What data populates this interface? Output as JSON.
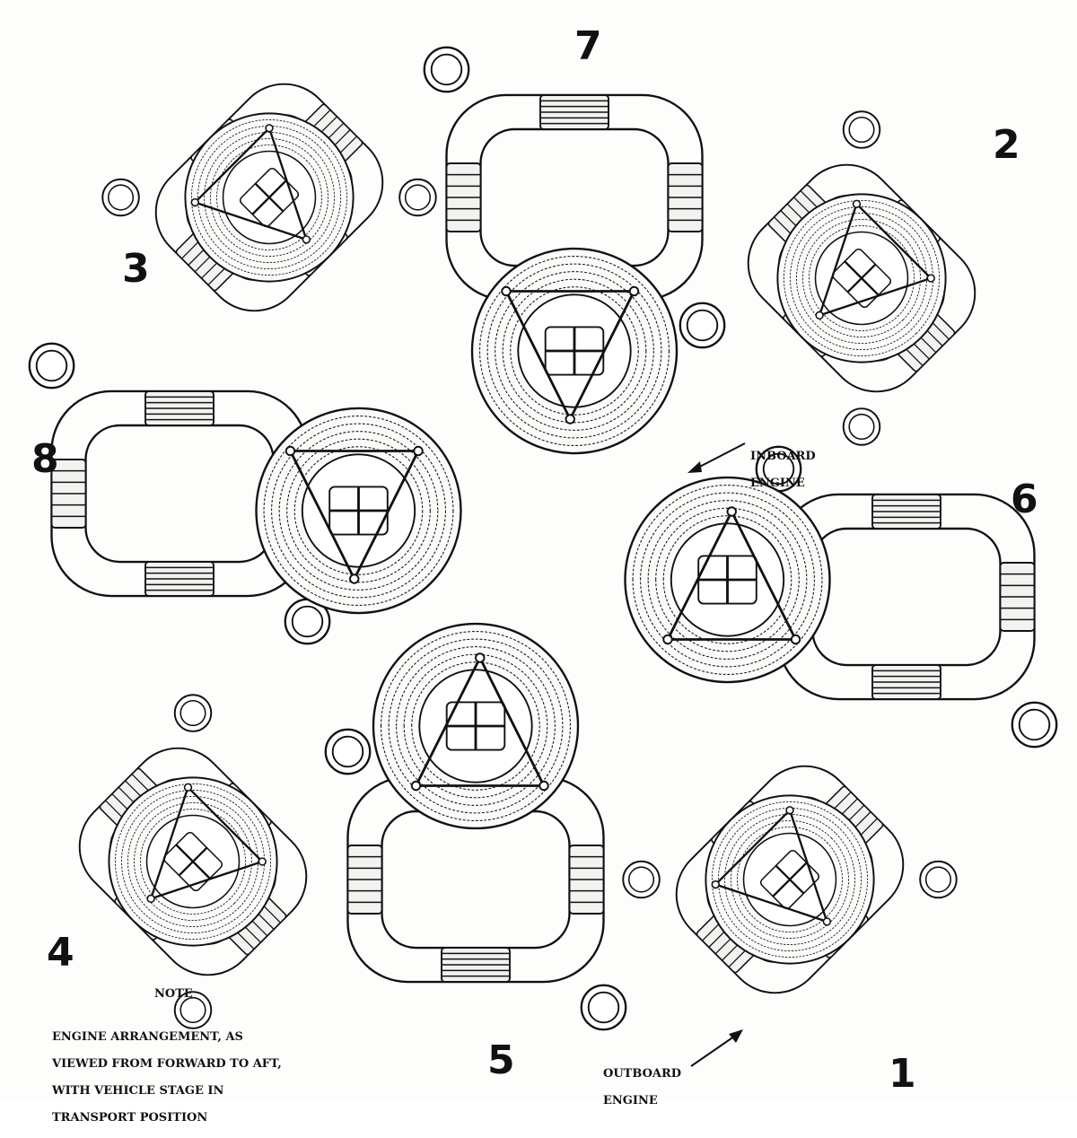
{
  "engine_numbers": [
    "1",
    "2",
    "3",
    "4",
    "5",
    "6",
    "7",
    "8"
  ],
  "labels": {
    "inboard": [
      "INBOARD",
      "ENGINE"
    ],
    "outboard": [
      "OUTBOARD",
      "ENGINE"
    ]
  },
  "note": {
    "title": "NOTE",
    "lines": [
      "ENGINE ARRANGEMENT, AS",
      "VIEWED FROM FORWARD TO AFT,",
      "WITH VEHICLE STAGE IN",
      "TRANSPORT POSITION"
    ]
  },
  "colors": {
    "ink": "#111111",
    "paper": "#fdfdfc"
  }
}
